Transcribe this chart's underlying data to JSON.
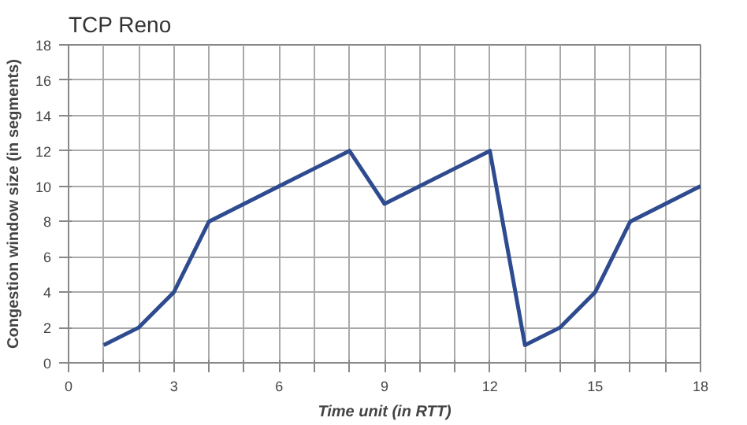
{
  "chart_data": {
    "type": "line",
    "title": "TCP Reno",
    "xlabel": "Time unit (in RTT)",
    "ylabel": "Congestion window size (in segments)",
    "x": [
      1,
      2,
      3,
      4,
      5,
      6,
      7,
      8,
      9,
      10,
      11,
      12,
      13,
      14,
      15,
      16,
      17,
      18
    ],
    "series": [
      {
        "color": "#2f4b8f",
        "values": [
          1,
          2,
          4,
          8,
          9,
          10,
          11,
          12,
          9,
          10,
          11,
          12,
          1,
          2,
          4,
          8,
          9,
          10
        ]
      }
    ],
    "xlim": [
      0,
      18
    ],
    "ylim": [
      0,
      18
    ],
    "xticks": [
      0,
      {
        "value": 1,
        "label": null
      },
      {
        "value": 2,
        "label": null
      },
      3,
      {
        "value": 4,
        "label": null
      },
      {
        "value": 5,
        "label": null
      },
      6,
      {
        "value": 7,
        "label": null
      },
      {
        "value": 8,
        "label": null
      },
      9,
      {
        "value": 10,
        "label": null
      },
      {
        "value": 11,
        "label": null
      },
      12,
      {
        "value": 13,
        "label": null
      },
      {
        "value": 14,
        "label": null
      },
      15,
      {
        "value": 16,
        "label": null
      },
      {
        "value": 17,
        "label": null
      },
      18
    ],
    "yticks": [
      0,
      2,
      4,
      6,
      8,
      10,
      12,
      14,
      16,
      18
    ],
    "grid": true,
    "marker": "none",
    "line_style": "solid"
  }
}
